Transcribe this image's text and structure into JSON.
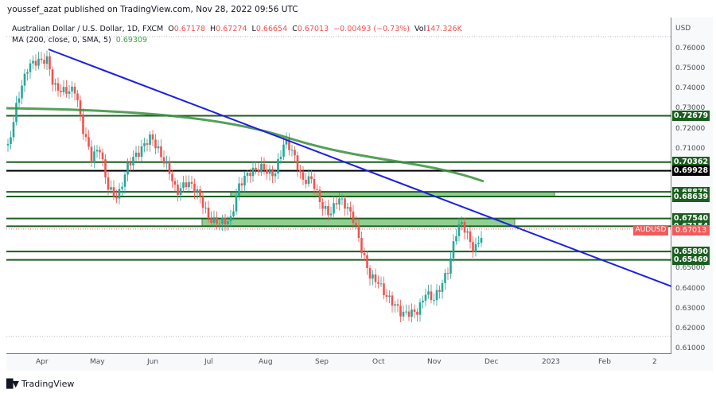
{
  "header": {
    "publisher_line": "youssef_azat published on TradingView.com, Nov 28, 2022 09:56 UTC"
  },
  "legend": {
    "symbol_desc": "Australian Dollar / U.S. Dollar, 1D, FXCM",
    "open_label": "O",
    "open": "0.67178",
    "high_label": "H",
    "high": "0.67274",
    "low_label": "L",
    "low": "0.66654",
    "close_label": "C",
    "close": "0.67013",
    "change": "−0.00493 (−0.73%)",
    "vol_label": "Vol",
    "vol": "147.326K",
    "ma_label": "MA (200, close, 0, SMA, 5)",
    "ma_value": "0.69309"
  },
  "price_axis": {
    "currency": "USD",
    "ticks": [
      "0.76000",
      "0.75000",
      "0.74000",
      "0.73000",
      "0.72000",
      "0.71000",
      "0.65000",
      "0.64000",
      "0.63000",
      "0.62000",
      "0.61000"
    ]
  },
  "price_tags": [
    {
      "value": "0.72679",
      "color": "#1b5e20"
    },
    {
      "value": "0.70362",
      "color": "#1b5e20"
    },
    {
      "value": "0.69928",
      "color": "#000000"
    },
    {
      "value": "0.68875",
      "color": "#1b5e20"
    },
    {
      "value": "0.68639",
      "color": "#1b5e20"
    },
    {
      "value": "0.67540",
      "color": "#1b5e20"
    },
    {
      "value": "0.67154",
      "color": "#1b5e20"
    },
    {
      "value": "0.65890",
      "color": "#1b5e20"
    },
    {
      "value": "0.65469",
      "color": "#1b5e20"
    }
  ],
  "current_price": {
    "symbol": "AUDUSD",
    "value": "0.67013",
    "color": "#f05c5c"
  },
  "time_axis": [
    "Apr",
    "May",
    "Jun",
    "Jul",
    "Aug",
    "Sep",
    "Oct",
    "Nov",
    "Dec",
    "2023",
    "Feb",
    "2"
  ],
  "footer": {
    "brand": "TradingView"
  },
  "colors": {
    "up": "#26a69a",
    "down": "#ef5350",
    "ma": "#388e3c",
    "trendline": "#1e1ee6",
    "level": "#1b5e20",
    "zone": "#8fcf8f"
  },
  "chart_data": {
    "type": "candlestick",
    "title": "Australian Dollar / U.S. Dollar, 1D, FXCM",
    "ylabel": "USD",
    "ylim": [
      0.61,
      0.765
    ],
    "x_ticks": [
      "Apr",
      "May",
      "Jun",
      "Jul",
      "Aug",
      "Sep",
      "Oct",
      "Nov",
      "Dec",
      "2023",
      "Feb",
      "2"
    ],
    "last_bar": {
      "open": 0.67178,
      "high": 0.67274,
      "low": 0.66654,
      "close": 0.67013,
      "change": -0.00493,
      "change_pct": -0.73,
      "volume": "147.326K"
    },
    "close_path_approx": [
      {
        "t": "Mar-end",
        "v": 0.718
      },
      {
        "t": "Apr-05",
        "v": 0.75
      },
      {
        "t": "Apr-20",
        "v": 0.755
      },
      {
        "t": "Apr-28",
        "v": 0.716
      },
      {
        "t": "May-12",
        "v": 0.687
      },
      {
        "t": "May-31",
        "v": 0.717
      },
      {
        "t": "Jun-16",
        "v": 0.69
      },
      {
        "t": "Jul-01",
        "v": 0.676
      },
      {
        "t": "Jul-14",
        "v": 0.672
      },
      {
        "t": "Aug-11",
        "v": 0.712
      },
      {
        "t": "Aug-26",
        "v": 0.69
      },
      {
        "t": "Sep-10",
        "v": 0.683
      },
      {
        "t": "Sep-30",
        "v": 0.645
      },
      {
        "t": "Oct-13",
        "v": 0.622
      },
      {
        "t": "Oct-31",
        "v": 0.641
      },
      {
        "t": "Nov-15",
        "v": 0.673
      },
      {
        "t": "Nov-22",
        "v": 0.661
      },
      {
        "t": "Nov-28",
        "v": 0.67
      }
    ],
    "series": [
      {
        "name": "MA (200, close, 0, SMA, 5)",
        "last_value": 0.69309
      },
      {
        "name": "Descending trendline",
        "from": {
          "t": "Apr-05",
          "v": 0.76
        },
        "to": {
          "t": "Feb-end",
          "v": 0.641
        }
      }
    ],
    "horizontal_levels": [
      0.72679,
      0.70362,
      0.69928,
      0.68875,
      0.68639,
      0.6754,
      0.67154,
      0.6589,
      0.65469
    ],
    "zones": [
      {
        "from": 0.68639,
        "to": 0.68875,
        "start": "Jul-mid",
        "end": "Dec-end"
      },
      {
        "from": 0.67154,
        "to": 0.6754,
        "start": "Jul-01",
        "end": "Dec-10"
      }
    ]
  }
}
